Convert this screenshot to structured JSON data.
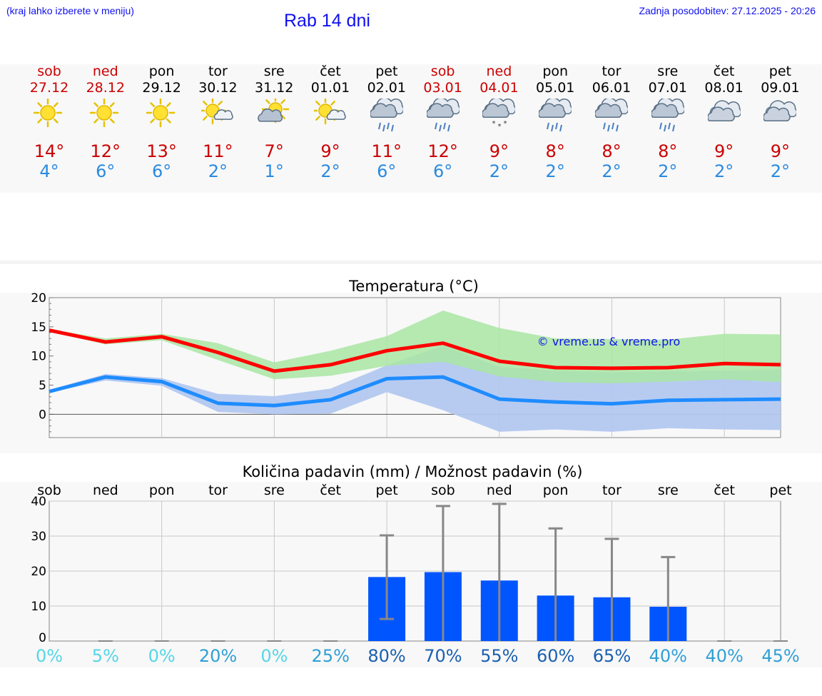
{
  "header": {
    "left_note": "(kraj lahko izberete v meniju)",
    "title": "Rab 14 dni",
    "updated": "Zadnja posodobitev: 27.12.2025 - 20:26"
  },
  "colors": {
    "accent_blue": "#1010ee",
    "weekend_red": "#cc0000",
    "max_temp": "#cc0000",
    "min_temp": "#2a8ae0",
    "max_line": "#ff0000",
    "min_line": "#1f8cff",
    "max_band": "#a9e6a3",
    "min_band": "#b3c8f0",
    "bar": "#0055ff"
  },
  "days": [
    {
      "name": "sob",
      "date": "27.12",
      "weekend": true,
      "icon": "sun-icon",
      "tmax": "14°",
      "tmin": "4°"
    },
    {
      "name": "ned",
      "date": "28.12",
      "weekend": true,
      "icon": "sun-icon",
      "tmax": "12°",
      "tmin": "6°"
    },
    {
      "name": "pon",
      "date": "29.12",
      "weekend": false,
      "icon": "sun-icon",
      "tmax": "13°",
      "tmin": "6°"
    },
    {
      "name": "tor",
      "date": "30.12",
      "weekend": false,
      "icon": "sun-small-cloud-icon",
      "tmax": "11°",
      "tmin": "2°"
    },
    {
      "name": "sre",
      "date": "31.12",
      "weekend": false,
      "icon": "sun-behind-cloud-icon",
      "tmax": "7°",
      "tmin": "1°"
    },
    {
      "name": "čet",
      "date": "01.01",
      "weekend": false,
      "icon": "sun-small-cloud-icon",
      "tmax": "9°",
      "tmin": "2°"
    },
    {
      "name": "pet",
      "date": "02.01",
      "weekend": false,
      "icon": "rain-cloud-icon",
      "tmax": "11°",
      "tmin": "6°"
    },
    {
      "name": "sob",
      "date": "03.01",
      "weekend": true,
      "icon": "rain-cloud-icon",
      "tmax": "12°",
      "tmin": "6°"
    },
    {
      "name": "ned",
      "date": "04.01",
      "weekend": true,
      "icon": "snow-cloud-icon",
      "tmax": "9°",
      "tmin": "2°"
    },
    {
      "name": "pon",
      "date": "05.01",
      "weekend": false,
      "icon": "rain-cloud-icon",
      "tmax": "8°",
      "tmin": "2°"
    },
    {
      "name": "tor",
      "date": "06.01",
      "weekend": false,
      "icon": "rain-cloud-icon",
      "tmax": "8°",
      "tmin": "2°"
    },
    {
      "name": "sre",
      "date": "07.01",
      "weekend": false,
      "icon": "rain-cloud-icon",
      "tmax": "8°",
      "tmin": "2°"
    },
    {
      "name": "čet",
      "date": "08.01",
      "weekend": false,
      "icon": "cloud-icon",
      "tmax": "9°",
      "tmin": "2°"
    },
    {
      "name": "pet",
      "date": "09.01",
      "weekend": false,
      "icon": "cloud-icon",
      "tmax": "9°",
      "tmin": "2°"
    }
  ],
  "chart_data": [
    {
      "type": "line",
      "title": "Temperatura (°C)",
      "watermark": "© vreme.us & vreme.pro",
      "ylim": [
        -4,
        20
      ],
      "yticks": [
        "20",
        "15",
        "10",
        "5",
        "0"
      ],
      "ytick_values": [
        20,
        15,
        10,
        5,
        0
      ],
      "categories": [
        "27.12",
        "28.12",
        "29.12",
        "30.12",
        "31.12",
        "01.01",
        "02.01",
        "03.01",
        "04.01",
        "05.01",
        "06.01",
        "07.01",
        "08.01",
        "09.01"
      ],
      "series": [
        {
          "name": "max",
          "values": [
            14.4,
            12.4,
            13.3,
            10.6,
            7.4,
            8.5,
            10.9,
            12.2,
            9.1,
            8.0,
            7.9,
            8.0,
            8.7,
            8.5
          ],
          "band_low": [
            14.2,
            12.0,
            12.7,
            9.3,
            6.0,
            6.6,
            8.3,
            9.0,
            6.5,
            5.5,
            5.3,
            5.6,
            6.0,
            5.5
          ],
          "band_high": [
            14.6,
            13.0,
            13.8,
            12.2,
            8.9,
            10.9,
            13.4,
            17.8,
            14.8,
            13.0,
            12.9,
            12.8,
            13.8,
            13.7
          ]
        },
        {
          "name": "min",
          "values": [
            3.9,
            6.4,
            5.6,
            1.9,
            1.5,
            2.5,
            6.1,
            6.4,
            2.6,
            2.1,
            1.8,
            2.4,
            2.5,
            2.6
          ],
          "band_low": [
            3.7,
            5.8,
            4.9,
            0.4,
            0.0,
            0.1,
            3.8,
            0.7,
            -3.0,
            -2.6,
            -3.0,
            -2.4,
            -2.6,
            -2.7
          ],
          "band_high": [
            4.2,
            6.9,
            6.2,
            3.5,
            3.1,
            4.4,
            8.4,
            11.8,
            8.1,
            7.5,
            7.2,
            7.4,
            7.5,
            7.7
          ]
        }
      ]
    },
    {
      "type": "bar",
      "title": "Količina padavin (mm) / Možnost padavin (%)",
      "ylim": [
        0,
        40
      ],
      "yticks": [
        "40",
        "30",
        "20",
        "10",
        "0"
      ],
      "ytick_values": [
        40,
        30,
        20,
        10,
        0
      ],
      "categories": [
        "sob",
        "ned",
        "pon",
        "tor",
        "sre",
        "čet",
        "pet",
        "sob",
        "ned",
        "pon",
        "tor",
        "sre",
        "čet",
        "pet"
      ],
      "values": [
        0,
        0,
        0,
        0,
        0,
        0,
        18.3,
        19.7,
        17.3,
        13.0,
        12.5,
        9.8,
        0,
        0
      ],
      "err_low": [
        0,
        0,
        0,
        0,
        0,
        0,
        6.3,
        0,
        0,
        0,
        0,
        0,
        0,
        0
      ],
      "err_high": [
        0,
        0.2,
        0.2,
        0.3,
        0.2,
        0.3,
        30.2,
        38.6,
        39.2,
        32.2,
        29.2,
        24.0,
        0.2,
        0.2
      ],
      "probability": [
        "0%",
        "5%",
        "0%",
        "20%",
        "0%",
        "25%",
        "80%",
        "70%",
        "55%",
        "60%",
        "65%",
        "40%",
        "40%",
        "45%"
      ],
      "prob_colors": [
        "#55d6e6",
        "#55d6e6",
        "#55d6e6",
        "#2f9fd6",
        "#55d6e6",
        "#2f9fd6",
        "#1a5fb0",
        "#1a5fb0",
        "#1a5fb0",
        "#1a5fb0",
        "#1a5fb0",
        "#2f9fd6",
        "#2f9fd6",
        "#2f9fd6"
      ]
    }
  ]
}
